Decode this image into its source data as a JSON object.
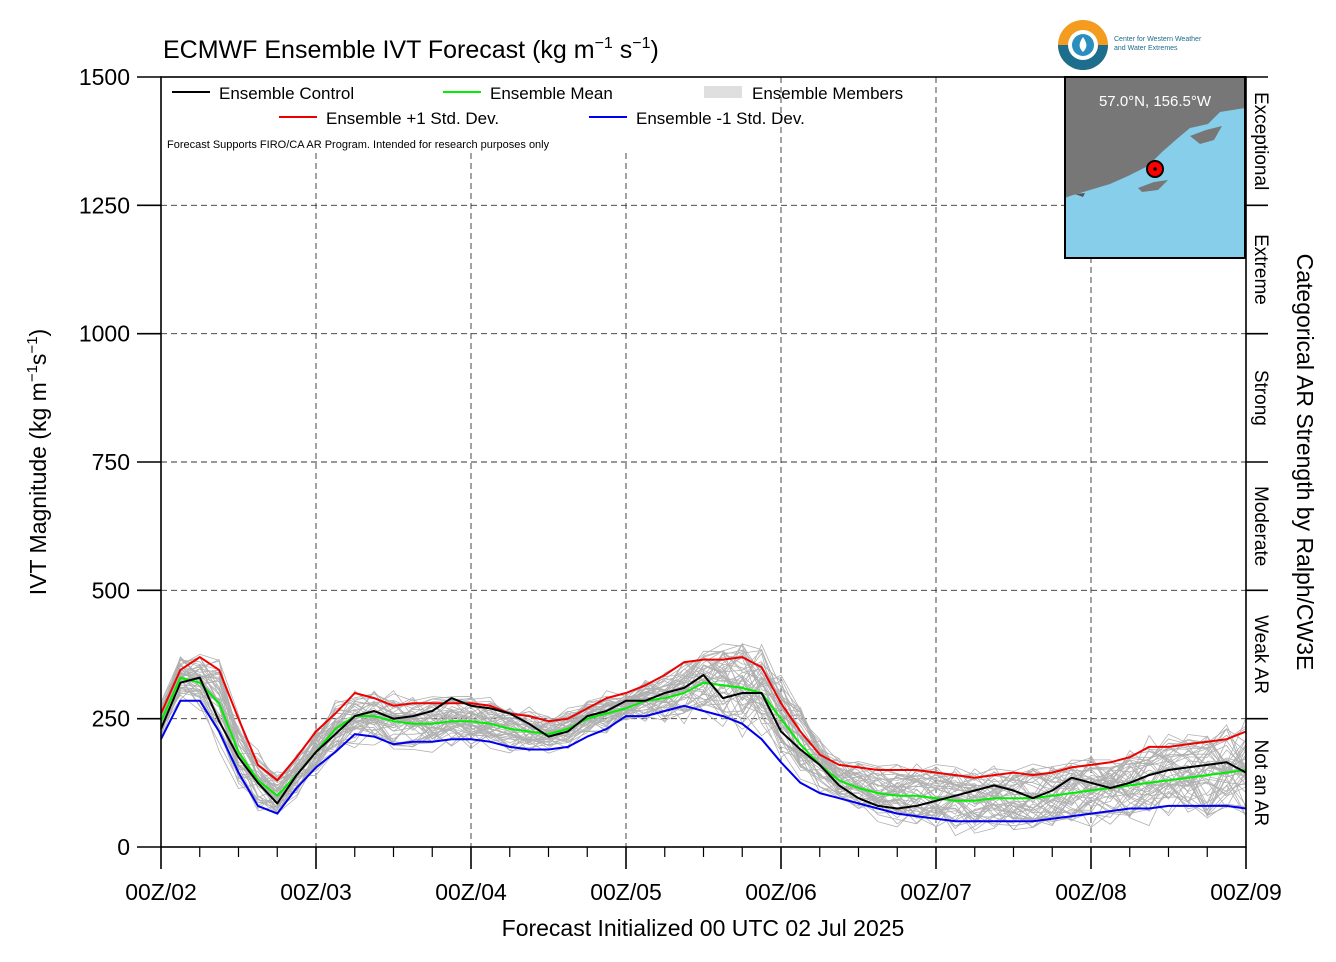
{
  "chart_data": {
    "type": "line",
    "title": "ECMWF Ensemble IVT Forecast (kg m⁻¹ s⁻¹)",
    "title_parts": {
      "main": "ECMWF Ensemble IVT Forecast (kg m",
      "sup1": "−1",
      "mid": " s",
      "sup2": "−1",
      "end": ")"
    },
    "xlabel": "Forecast Initialized 00 UTC 02 Jul 2025",
    "ylabel": "IVT Magnitude (kg m⁻¹s⁻¹)",
    "ylabel_parts": {
      "main": "IVT Magnitude (kg m",
      "sup1": "−1",
      "mid": "s",
      "sup2": "−1",
      "end": ")"
    },
    "right_label": "Categorical AR Strength by Ralph/CW3E",
    "ylim": [
      0,
      1500
    ],
    "xlim_hours": [
      0,
      168
    ],
    "yticks": [
      0,
      250,
      500,
      750,
      1000,
      1250,
      1500
    ],
    "xticks": [
      {
        "hour": 0,
        "label": "00Z/02"
      },
      {
        "hour": 24,
        "label": "00Z/03"
      },
      {
        "hour": 48,
        "label": "00Z/04"
      },
      {
        "hour": 72,
        "label": "00Z/05"
      },
      {
        "hour": 96,
        "label": "00Z/06"
      },
      {
        "hour": 120,
        "label": "00Z/07"
      },
      {
        "hour": 144,
        "label": "00Z/08"
      },
      {
        "hour": 168,
        "label": "00Z/09"
      }
    ],
    "grid": "dashed",
    "categories": [
      {
        "label": "Not an AR",
        "range": [
          0,
          250
        ]
      },
      {
        "label": "Weak AR",
        "range": [
          250,
          500
        ]
      },
      {
        "label": "Moderate",
        "range": [
          500,
          750
        ]
      },
      {
        "label": "Strong",
        "range": [
          750,
          1000
        ]
      },
      {
        "label": "Extreme",
        "range": [
          1000,
          1250
        ]
      },
      {
        "label": "Exceptional",
        "range": [
          1250,
          1500
        ]
      }
    ],
    "legend": {
      "placement": "top-left",
      "entries": [
        {
          "label": "Ensemble Control",
          "color": "#000000"
        },
        {
          "label": "Ensemble Mean",
          "color": "#00ee00"
        },
        {
          "label": "Ensemble Members",
          "color": "#aaaaaa"
        },
        {
          "label": "Ensemble +1 Std. Dev.",
          "color": "#ee0000"
        },
        {
          "label": "Ensemble -1 Std. Dev.",
          "color": "#0000ee"
        }
      ],
      "note": "Forecast Supports FIRO/CA AR Program. Intended for research purposes only"
    },
    "inset_map": {
      "label": "57.0°N, 156.5°W",
      "water": "#87ceeb",
      "land": "#777777",
      "marker": "#ff0000"
    },
    "series": [
      {
        "name": "Ensemble Control",
        "color": "#000000",
        "x": [
          0,
          3,
          6,
          9,
          12,
          15,
          18,
          21,
          24,
          27,
          30,
          33,
          36,
          39,
          42,
          45,
          48,
          51,
          54,
          57,
          60,
          63,
          66,
          69,
          72,
          75,
          78,
          81,
          84,
          87,
          90,
          93,
          96,
          99,
          102,
          105,
          108,
          111,
          114,
          117,
          120,
          123,
          126,
          129,
          132,
          135,
          138,
          141,
          144,
          147,
          150,
          153,
          156,
          159,
          162,
          165,
          168
        ],
        "values": [
          230,
          320,
          330,
          245,
          175,
          125,
          85,
          140,
          185,
          220,
          255,
          265,
          250,
          255,
          265,
          290,
          275,
          270,
          260,
          240,
          215,
          225,
          255,
          265,
          285,
          285,
          300,
          310,
          335,
          290,
          300,
          300,
          225,
          190,
          160,
          120,
          95,
          80,
          75,
          80,
          90,
          100,
          110,
          120,
          110,
          95,
          110,
          135,
          125,
          115,
          125,
          140,
          150,
          155,
          160,
          165,
          145
        ]
      },
      {
        "name": "Ensemble Mean",
        "color": "#00ee00",
        "x": [
          0,
          3,
          6,
          9,
          12,
          15,
          18,
          21,
          24,
          27,
          30,
          33,
          36,
          39,
          42,
          45,
          48,
          51,
          54,
          57,
          60,
          63,
          66,
          69,
          72,
          75,
          78,
          81,
          84,
          87,
          90,
          93,
          96,
          99,
          102,
          105,
          108,
          111,
          114,
          117,
          120,
          123,
          126,
          129,
          132,
          135,
          138,
          141,
          144,
          147,
          150,
          153,
          156,
          159,
          162,
          165,
          168
        ],
        "values": [
          245,
          330,
          320,
          280,
          185,
          130,
          100,
          140,
          185,
          230,
          255,
          255,
          245,
          240,
          240,
          245,
          245,
          240,
          230,
          225,
          220,
          230,
          250,
          260,
          270,
          285,
          290,
          300,
          320,
          315,
          310,
          300,
          250,
          200,
          160,
          130,
          115,
          105,
          100,
          100,
          95,
          90,
          90,
          95,
          95,
          95,
          100,
          105,
          110,
          115,
          120,
          125,
          130,
          135,
          140,
          145,
          150
        ]
      },
      {
        "name": "Ensemble +1 Std. Dev.",
        "color": "#ee0000",
        "x": [
          0,
          3,
          6,
          9,
          12,
          15,
          18,
          21,
          24,
          27,
          30,
          33,
          36,
          39,
          42,
          45,
          48,
          51,
          54,
          57,
          60,
          63,
          66,
          69,
          72,
          75,
          78,
          81,
          84,
          87,
          90,
          93,
          96,
          99,
          102,
          105,
          108,
          111,
          114,
          117,
          120,
          123,
          126,
          129,
          132,
          135,
          138,
          141,
          144,
          147,
          150,
          153,
          156,
          159,
          162,
          165,
          168
        ],
        "values": [
          260,
          345,
          370,
          345,
          250,
          160,
          130,
          175,
          225,
          260,
          300,
          290,
          275,
          280,
          280,
          280,
          280,
          275,
          260,
          255,
          245,
          250,
          270,
          290,
          300,
          315,
          335,
          360,
          365,
          365,
          370,
          350,
          280,
          225,
          180,
          160,
          155,
          150,
          150,
          150,
          145,
          140,
          135,
          140,
          145,
          140,
          145,
          155,
          160,
          165,
          175,
          195,
          195,
          200,
          205,
          210,
          225
        ]
      },
      {
        "name": "Ensemble -1 Std. Dev.",
        "color": "#0000ee",
        "x": [
          0,
          3,
          6,
          9,
          12,
          15,
          18,
          21,
          24,
          27,
          30,
          33,
          36,
          39,
          42,
          45,
          48,
          51,
          54,
          57,
          60,
          63,
          66,
          69,
          72,
          75,
          78,
          81,
          84,
          87,
          90,
          93,
          96,
          99,
          102,
          105,
          108,
          111,
          114,
          117,
          120,
          123,
          126,
          129,
          132,
          135,
          138,
          141,
          144,
          147,
          150,
          153,
          156,
          159,
          162,
          165,
          168
        ],
        "values": [
          210,
          285,
          285,
          225,
          145,
          80,
          65,
          115,
          155,
          185,
          220,
          215,
          200,
          205,
          205,
          210,
          210,
          205,
          195,
          190,
          190,
          195,
          215,
          230,
          255,
          255,
          265,
          275,
          265,
          255,
          240,
          210,
          165,
          125,
          105,
          95,
          85,
          75,
          65,
          60,
          55,
          50,
          50,
          50,
          50,
          50,
          55,
          60,
          65,
          70,
          75,
          75,
          80,
          80,
          80,
          80,
          75
        ]
      }
    ]
  }
}
